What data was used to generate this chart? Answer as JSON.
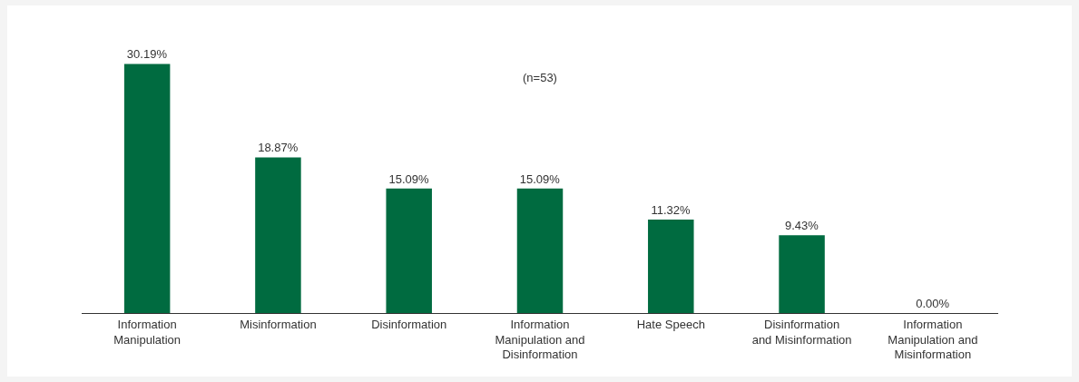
{
  "chart_data": {
    "type": "bar",
    "categories": [
      "Information\nManipulation",
      "Misinformation",
      "Disinformation",
      "Information\nManipulation and\nDisinformation",
      "Hate Speech",
      "Disinformation\nand Misinformation",
      "Information\nManipulation and\nMisinformation"
    ],
    "values": [
      30.19,
      18.87,
      15.09,
      15.09,
      11.32,
      9.43,
      0
    ],
    "value_labels": [
      "30.19%",
      "18.87%",
      "15.09%",
      "15.09%",
      "11.32%",
      "9.43%",
      "0.00%"
    ],
    "color": "#006b40",
    "annotations": [
      "(n=53)"
    ],
    "grid": false
  }
}
